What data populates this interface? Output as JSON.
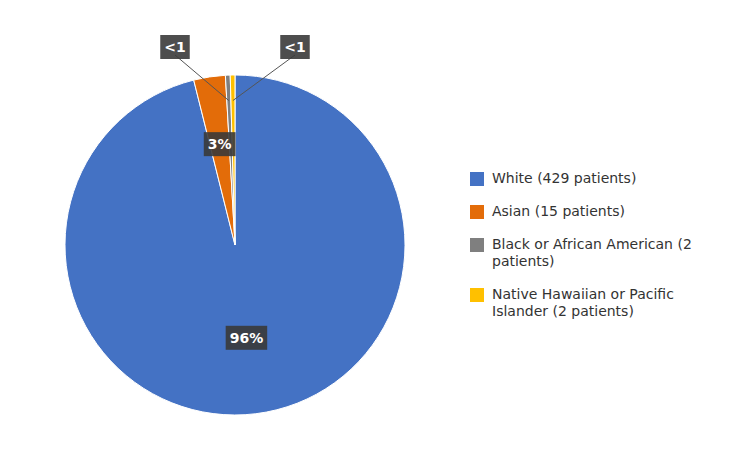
{
  "chart_data": {
    "type": "pie",
    "categories": [
      "White (429 patients)",
      "Asian (15 patients)",
      "Black or African American  (2\npatients)",
      "Native Hawaiian or Pacific\nIslander (2 patients)"
    ],
    "values": [
      96,
      3,
      0.45,
      0.45
    ],
    "value_labels": [
      "96%",
      "3%",
      "<1",
      "<1"
    ],
    "colors": [
      "#4472C4",
      "#E36C09",
      "#7F7F7F",
      "#FFC000"
    ],
    "data_labels": true,
    "legend": "right"
  }
}
